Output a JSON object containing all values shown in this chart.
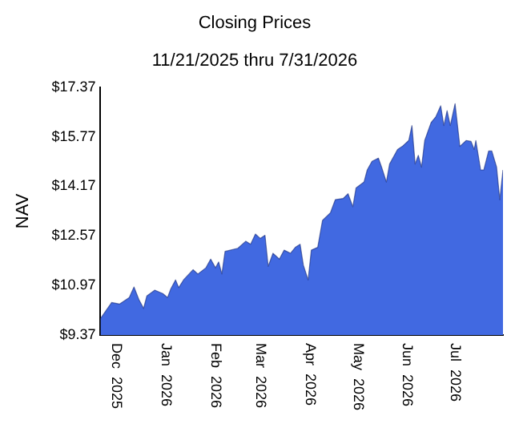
{
  "chart_data": {
    "type": "area",
    "title": "Closing Prices",
    "subtitle": "11/21/2025 thru 7/31/2026",
    "ylabel": "NAV",
    "x": [
      "2025-11-21",
      "2025-11-28",
      "2025-12-03",
      "2025-12-09",
      "2025-12-12",
      "2025-12-15",
      "2025-12-18",
      "2025-12-20",
      "2025-12-25",
      "2025-12-30",
      "2026-01-02",
      "2026-01-04",
      "2026-01-07",
      "2026-01-09",
      "2026-01-12",
      "2026-01-18",
      "2026-01-21",
      "2026-01-26",
      "2026-01-29",
      "2026-02-01",
      "2026-02-03",
      "2026-02-05",
      "2026-02-07",
      "2026-02-15",
      "2026-02-20",
      "2026-02-23",
      "2026-02-26",
      "2026-03-01",
      "2026-03-04",
      "2026-03-06",
      "2026-03-09",
      "2026-03-13",
      "2026-03-16",
      "2026-03-20",
      "2026-03-23",
      "2026-03-26",
      "2026-03-28",
      "2026-03-31",
      "2026-04-02",
      "2026-04-06",
      "2026-04-09",
      "2026-04-14",
      "2026-04-17",
      "2026-04-22",
      "2026-04-25",
      "2026-04-28",
      "2026-04-30",
      "2026-05-05",
      "2026-05-07",
      "2026-05-10",
      "2026-05-14",
      "2026-05-16",
      "2026-05-19",
      "2026-05-21",
      "2026-05-26",
      "2026-05-29",
      "2026-06-02",
      "2026-06-04",
      "2026-06-06",
      "2026-06-08",
      "2026-06-10",
      "2026-06-12",
      "2026-06-16",
      "2026-06-19",
      "2026-06-22",
      "2026-06-24",
      "2026-06-26",
      "2026-06-28",
      "2026-07-01",
      "2026-07-04",
      "2026-07-08",
      "2026-07-11",
      "2026-07-13",
      "2026-07-14",
      "2026-07-17",
      "2026-07-19",
      "2026-07-22",
      "2026-07-24",
      "2026-07-27",
      "2026-07-29",
      "2026-07-31"
    ],
    "series": [
      {
        "color": "#4169e1",
        "values": [
          9.9,
          10.42,
          10.37,
          10.58,
          10.92,
          10.52,
          10.23,
          10.63,
          10.82,
          10.71,
          10.58,
          10.86,
          11.15,
          10.9,
          11.15,
          11.48,
          11.34,
          11.54,
          11.82,
          11.54,
          11.73,
          11.34,
          12.07,
          12.17,
          12.4,
          12.3,
          12.63,
          12.49,
          12.59,
          11.59,
          12.01,
          11.82,
          12.11,
          12.01,
          12.2,
          12.3,
          11.63,
          11.15,
          12.11,
          12.2,
          13.07,
          13.32,
          13.74,
          13.78,
          13.93,
          13.51,
          14.12,
          14.31,
          14.7,
          14.98,
          15.08,
          14.79,
          14.31,
          14.89,
          15.36,
          15.46,
          15.65,
          16.13,
          14.89,
          15.17,
          14.79,
          15.65,
          16.23,
          16.42,
          16.77,
          16.13,
          16.61,
          16.13,
          16.84,
          15.46,
          15.65,
          15.62,
          15.36,
          15.65,
          14.7,
          14.7,
          15.31,
          15.31,
          14.79,
          13.74,
          14.7
        ]
      }
    ],
    "xlim": [
      "2025-11-21",
      "2026-07-31"
    ],
    "xticks": [
      {
        "value": "2025-12-01",
        "label": "Dec  2025"
      },
      {
        "value": "2026-01-01",
        "label": "Jan  2026"
      },
      {
        "value": "2026-02-01",
        "label": "Feb  2026"
      },
      {
        "value": "2026-03-01",
        "label": "Mar  2026"
      },
      {
        "value": "2026-04-01",
        "label": "Apr  2026"
      },
      {
        "value": "2026-05-01",
        "label": "May  2026"
      },
      {
        "value": "2026-06-01",
        "label": "Jun  2026"
      },
      {
        "value": "2026-07-01",
        "label": "Jul  2026"
      }
    ],
    "ylim": [
      9.37,
      17.37
    ],
    "yticks": [
      {
        "value": 9.37,
        "label": "$9.37"
      },
      {
        "value": 10.97,
        "label": "$10.97"
      },
      {
        "value": 12.57,
        "label": "$12.57"
      },
      {
        "value": 14.17,
        "label": "$14.17"
      },
      {
        "value": 15.77,
        "label": "$15.77"
      },
      {
        "value": 17.37,
        "label": "$17.37"
      }
    ],
    "grid": false,
    "legend": false,
    "marker": "none"
  }
}
